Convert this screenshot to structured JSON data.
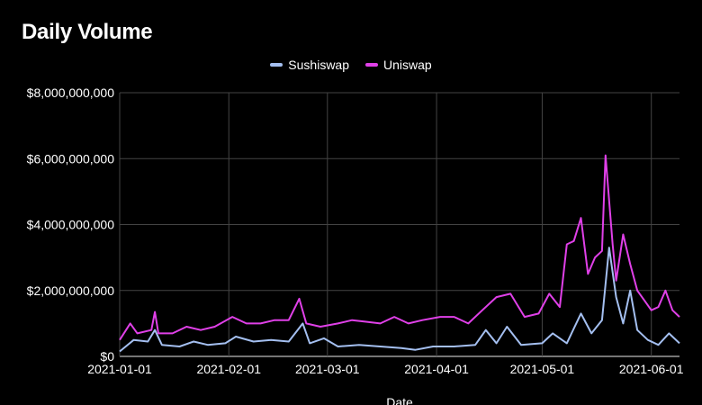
{
  "chart_data": {
    "type": "line",
    "title": "Daily Volume",
    "xlabel": "Date",
    "ylabel": "",
    "x_start": "2021-01-01",
    "x_end": "2021-06-09",
    "x_ticks": [
      "2021-01-01",
      "2021-02-01",
      "2021-03-01",
      "2021-04-01",
      "2021-05-01",
      "2021-06-01"
    ],
    "ylim": [
      0,
      8000000000
    ],
    "y_ticks": [
      0,
      2000000000,
      4000000000,
      6000000000,
      8000000000
    ],
    "y_tick_labels": [
      "$0",
      "$2,000,000,000",
      "$4,000,000,000",
      "$6,000,000,000",
      "$8,000,000,000"
    ],
    "grid": true,
    "legend_position": "top",
    "series": [
      {
        "name": "Sushiswap",
        "color": "#a4bff0",
        "points": [
          [
            "2021-01-01",
            150000000
          ],
          [
            "2021-01-05",
            500000000
          ],
          [
            "2021-01-09",
            450000000
          ],
          [
            "2021-01-11",
            800000000
          ],
          [
            "2021-01-13",
            350000000
          ],
          [
            "2021-01-18",
            300000000
          ],
          [
            "2021-01-22",
            450000000
          ],
          [
            "2021-01-26",
            350000000
          ],
          [
            "2021-01-31",
            400000000
          ],
          [
            "2021-02-03",
            600000000
          ],
          [
            "2021-02-08",
            450000000
          ],
          [
            "2021-02-13",
            500000000
          ],
          [
            "2021-02-18",
            450000000
          ],
          [
            "2021-02-22",
            1000000000
          ],
          [
            "2021-02-24",
            400000000
          ],
          [
            "2021-02-28",
            550000000
          ],
          [
            "2021-03-04",
            300000000
          ],
          [
            "2021-03-10",
            350000000
          ],
          [
            "2021-03-16",
            300000000
          ],
          [
            "2021-03-22",
            250000000
          ],
          [
            "2021-03-26",
            200000000
          ],
          [
            "2021-03-31",
            300000000
          ],
          [
            "2021-04-06",
            300000000
          ],
          [
            "2021-04-12",
            350000000
          ],
          [
            "2021-04-15",
            800000000
          ],
          [
            "2021-04-18",
            400000000
          ],
          [
            "2021-04-21",
            900000000
          ],
          [
            "2021-04-25",
            350000000
          ],
          [
            "2021-05-01",
            400000000
          ],
          [
            "2021-05-04",
            700000000
          ],
          [
            "2021-05-08",
            400000000
          ],
          [
            "2021-05-12",
            1300000000
          ],
          [
            "2021-05-15",
            700000000
          ],
          [
            "2021-05-18",
            1100000000
          ],
          [
            "2021-05-20",
            3300000000
          ],
          [
            "2021-05-22",
            1800000000
          ],
          [
            "2021-05-24",
            1000000000
          ],
          [
            "2021-05-26",
            2000000000
          ],
          [
            "2021-05-28",
            800000000
          ],
          [
            "2021-05-31",
            500000000
          ],
          [
            "2021-06-03",
            350000000
          ],
          [
            "2021-06-06",
            700000000
          ],
          [
            "2021-06-09",
            400000000
          ]
        ]
      },
      {
        "name": "Uniswap",
        "color": "#e040e8",
        "points": [
          [
            "2021-01-01",
            500000000
          ],
          [
            "2021-01-04",
            1000000000
          ],
          [
            "2021-01-06",
            700000000
          ],
          [
            "2021-01-10",
            800000000
          ],
          [
            "2021-01-11",
            1350000000
          ],
          [
            "2021-01-12",
            700000000
          ],
          [
            "2021-01-16",
            700000000
          ],
          [
            "2021-01-20",
            900000000
          ],
          [
            "2021-01-24",
            800000000
          ],
          [
            "2021-01-28",
            900000000
          ],
          [
            "2021-02-02",
            1200000000
          ],
          [
            "2021-02-06",
            1000000000
          ],
          [
            "2021-02-10",
            1000000000
          ],
          [
            "2021-02-14",
            1100000000
          ],
          [
            "2021-02-18",
            1100000000
          ],
          [
            "2021-02-21",
            1750000000
          ],
          [
            "2021-02-23",
            1000000000
          ],
          [
            "2021-02-27",
            900000000
          ],
          [
            "2021-03-04",
            1000000000
          ],
          [
            "2021-03-08",
            1100000000
          ],
          [
            "2021-03-12",
            1050000000
          ],
          [
            "2021-03-16",
            1000000000
          ],
          [
            "2021-03-20",
            1200000000
          ],
          [
            "2021-03-24",
            1000000000
          ],
          [
            "2021-03-28",
            1100000000
          ],
          [
            "2021-04-02",
            1200000000
          ],
          [
            "2021-04-06",
            1200000000
          ],
          [
            "2021-04-10",
            1000000000
          ],
          [
            "2021-04-14",
            1400000000
          ],
          [
            "2021-04-18",
            1800000000
          ],
          [
            "2021-04-22",
            1900000000
          ],
          [
            "2021-04-26",
            1200000000
          ],
          [
            "2021-04-30",
            1300000000
          ],
          [
            "2021-05-03",
            1900000000
          ],
          [
            "2021-05-06",
            1500000000
          ],
          [
            "2021-05-08",
            3400000000
          ],
          [
            "2021-05-10",
            3500000000
          ],
          [
            "2021-05-12",
            4200000000
          ],
          [
            "2021-05-14",
            2500000000
          ],
          [
            "2021-05-16",
            3000000000
          ],
          [
            "2021-05-18",
            3200000000
          ],
          [
            "2021-05-19",
            6100000000
          ],
          [
            "2021-05-21",
            3400000000
          ],
          [
            "2021-05-22",
            2300000000
          ],
          [
            "2021-05-24",
            3700000000
          ],
          [
            "2021-05-26",
            2800000000
          ],
          [
            "2021-05-28",
            2000000000
          ],
          [
            "2021-05-30",
            1700000000
          ],
          [
            "2021-06-01",
            1400000000
          ],
          [
            "2021-06-03",
            1500000000
          ],
          [
            "2021-06-05",
            2000000000
          ],
          [
            "2021-06-07",
            1400000000
          ],
          [
            "2021-06-09",
            1200000000
          ]
        ]
      }
    ]
  }
}
